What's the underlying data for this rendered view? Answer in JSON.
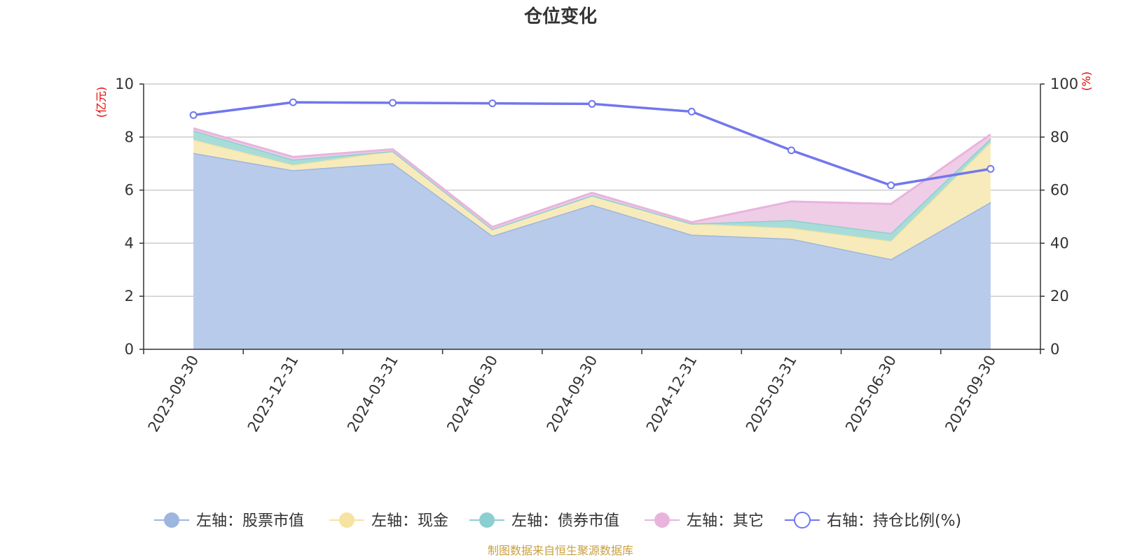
{
  "chart_data": {
    "type": "area",
    "title": "仓位变化",
    "categories": [
      "2023-09-30",
      "2023-12-31",
      "2024-03-31",
      "2024-06-30",
      "2024-09-30",
      "2024-12-31",
      "2025-03-31",
      "2025-06-30",
      "2025-09-30"
    ],
    "left_axis": {
      "unit": "(亿元)",
      "ylim": [
        0,
        10
      ],
      "ticks": [
        "0",
        "2",
        "4",
        "6",
        "8",
        "10"
      ]
    },
    "right_axis": {
      "unit": "(%)",
      "ylim": [
        0,
        100
      ],
      "ticks": [
        "0",
        "20",
        "40",
        "60",
        "80",
        "100"
      ]
    },
    "series": [
      {
        "name": "左轴：股票市值",
        "axis": "left",
        "kind": "area",
        "color": "#9db6df",
        "fill": "#b8cbea",
        "values": [
          7.4,
          6.75,
          7.02,
          4.28,
          5.45,
          4.32,
          4.17,
          3.4,
          5.55
        ]
      },
      {
        "name": "左轴：现金",
        "axis": "left",
        "kind": "area",
        "color": "#f5e3a0",
        "fill": "#f8ebbb",
        "values": [
          0.5,
          0.2,
          0.45,
          0.25,
          0.35,
          0.42,
          0.4,
          0.68,
          2.25
        ]
      },
      {
        "name": "左轴：债券市值",
        "axis": "left",
        "kind": "area",
        "color": "#8ccfd0",
        "fill": "#a8dcd9",
        "values": [
          0.35,
          0.2,
          0.0,
          0.0,
          0.0,
          0.0,
          0.3,
          0.3,
          0.15
        ]
      },
      {
        "name": "左轴：其它",
        "axis": "left",
        "kind": "area",
        "color": "#e8b4dc",
        "fill": "#efcde7",
        "values": [
          0.08,
          0.1,
          0.07,
          0.08,
          0.1,
          0.05,
          0.7,
          1.1,
          0.15
        ]
      },
      {
        "name": "右轴：持仓比例(%)",
        "axis": "right",
        "kind": "line",
        "color": "#7177ee",
        "values": [
          88.3,
          93.1,
          92.9,
          92.7,
          92.5,
          89.6,
          75.0,
          61.8,
          68.0
        ]
      }
    ],
    "legend_position": "bottom",
    "source": "制图数据来自恒生聚源数据库"
  }
}
